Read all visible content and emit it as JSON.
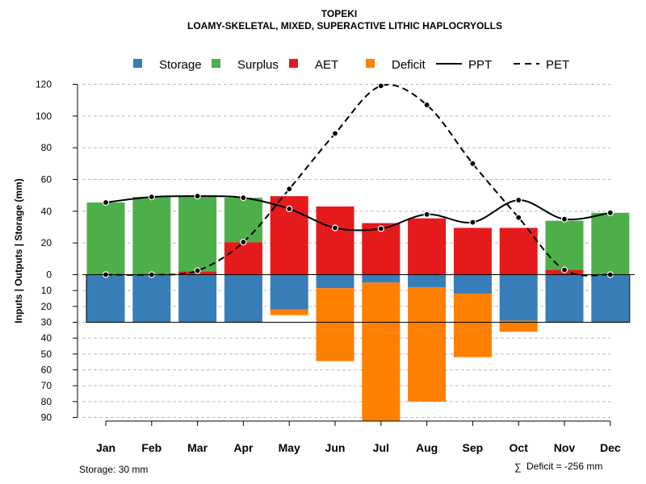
{
  "chart_data": {
    "type": "bar",
    "title": "TOPEKI",
    "subtitle": "LOAMY-SKELETAL, MIXED, SUPERACTIVE LITHIC HAPLOCRYOLLS",
    "ylabel": "Inputs | Outputs | Storage     (mm)",
    "categories": [
      "Jan",
      "Feb",
      "Mar",
      "Apr",
      "May",
      "Jun",
      "Jul",
      "Aug",
      "Sep",
      "Oct",
      "Nov",
      "Dec"
    ],
    "upper_ticks": [
      "0",
      "20",
      "40",
      "60",
      "80",
      "100",
      "120"
    ],
    "lower_ticks": [
      "10",
      "20",
      "30",
      "40",
      "50",
      "60",
      "70",
      "80",
      "90"
    ],
    "ylim_upper": [
      0,
      120
    ],
    "ylim_lower": [
      0,
      90
    ],
    "storage_capacity": 30,
    "colors": {
      "storage": "#377eb8",
      "surplus": "#4daf4a",
      "aet": "#e41a1c",
      "deficit": "#ff7f00",
      "line": "#000000",
      "grid": "#bbbbbb"
    },
    "legend": [
      {
        "key": "storage",
        "label": "Storage",
        "kind": "box"
      },
      {
        "key": "surplus",
        "label": "Surplus",
        "kind": "box"
      },
      {
        "key": "aet",
        "label": "AET",
        "kind": "box"
      },
      {
        "key": "deficit",
        "label": "Deficit",
        "kind": "box"
      },
      {
        "key": "ppt",
        "label": "PPT",
        "kind": "solid"
      },
      {
        "key": "pet",
        "label": "PET",
        "kind": "dashed"
      }
    ],
    "series": [
      {
        "name": "AET",
        "values": [
          0,
          0,
          2,
          20.5,
          49.5,
          43,
          32.5,
          35.5,
          29.5,
          29.5,
          3,
          0
        ]
      },
      {
        "name": "Surplus",
        "values": [
          45.5,
          49,
          47.5,
          28,
          0,
          0,
          0,
          0,
          0,
          0,
          31,
          39
        ]
      },
      {
        "name": "PPT",
        "values": [
          45.5,
          49,
          49.5,
          48.5,
          41.5,
          29.5,
          29,
          38,
          33,
          47,
          35,
          39
        ]
      },
      {
        "name": "PET",
        "values": [
          0,
          0,
          2.5,
          20.5,
          54,
          89,
          119,
          107,
          70,
          36,
          3,
          0
        ]
      },
      {
        "name": "Storage",
        "values": [
          30,
          30,
          30,
          30,
          22,
          8.5,
          5,
          8,
          12,
          29,
          30,
          30
        ]
      },
      {
        "name": "Deficit",
        "values": [
          0,
          0,
          0,
          0,
          3.5,
          46,
          87,
          72,
          40,
          7,
          0,
          0
        ]
      }
    ]
  },
  "footer": {
    "storage_note": "Storage: 30 mm",
    "deficit_symbol": "∑",
    "deficit_note": "Deficit = -256 mm"
  }
}
